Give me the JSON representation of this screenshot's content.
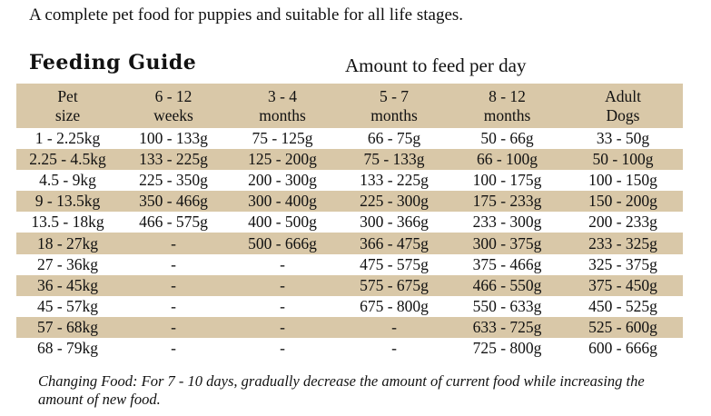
{
  "intro": "A complete pet food for puppies and suitable for all life stages.",
  "guide_title": "Feeding Guide",
  "amount_title": "Amount to feed per day",
  "header": [
    [
      "Pet",
      "size"
    ],
    [
      "6 - 12",
      "weeks"
    ],
    [
      "3 - 4",
      "months"
    ],
    [
      "5 - 7",
      "months"
    ],
    [
      "8 - 12",
      "months"
    ],
    [
      "Adult",
      "Dogs"
    ]
  ],
  "rows": [
    [
      "1 - 2.25kg",
      "100 - 133g",
      "75 - 125g",
      "66 - 75g",
      "50 - 66g",
      "33 - 50g"
    ],
    [
      "2.25 - 4.5kg",
      "133 - 225g",
      "125 - 200g",
      "75 - 133g",
      "66 - 100g",
      "50 - 100g"
    ],
    [
      "4.5 - 9kg",
      "225 - 350g",
      "200 - 300g",
      "133 - 225g",
      "100 - 175g",
      "100 - 150g"
    ],
    [
      "9 - 13.5kg",
      "350 - 466g",
      "300 - 400g",
      "225 - 300g",
      "175 - 233g",
      "150 - 200g"
    ],
    [
      "13.5 - 18kg",
      "466 - 575g",
      "400 - 500g",
      "300 - 366g",
      "233 - 300g",
      "200 - 233g"
    ],
    [
      "18 - 27kg",
      "-",
      "500 - 666g",
      "366 - 475g",
      "300 - 375g",
      "233 - 325g"
    ],
    [
      "27 - 36kg",
      "-",
      "-",
      "475 - 575g",
      "375 - 466g",
      "325 - 375g"
    ],
    [
      "36 - 45kg",
      "-",
      "-",
      "575 - 675g",
      "466 - 550g",
      "375 - 450g"
    ],
    [
      "45 - 57kg",
      "-",
      "-",
      "675 - 800g",
      "550 - 633g",
      "450 - 525g"
    ],
    [
      "57 - 68kg",
      "-",
      "-",
      "-",
      "633 - 725g",
      "525 - 600g"
    ],
    [
      "68 - 79kg",
      "-",
      "-",
      "-",
      "725 - 800g",
      "600 - 666g"
    ]
  ],
  "note": "Changing Food: For 7 - 10 days, gradually decrease the amount of current food while increasing the amount of new food.",
  "colors": {
    "shade": "#d9c8a8",
    "text": "#111111"
  }
}
